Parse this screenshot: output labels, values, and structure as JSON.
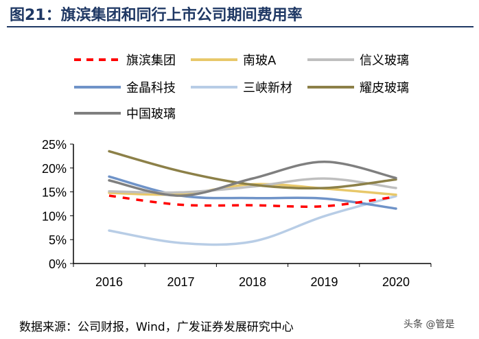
{
  "title": "图21：旗滨集团和同行上市公司期间费用率",
  "source": "数据来源：公司财报，Wind，广发证券发展研究中心",
  "watermark": "头条 @管是",
  "chart_data": {
    "type": "line",
    "title": "图21：旗滨集团和同行上市公司期间费用率",
    "categories": [
      "2016",
      "2017",
      "2018",
      "2019",
      "2020"
    ],
    "ylim": [
      0,
      25
    ],
    "yticks": [
      "0%",
      "5%",
      "10%",
      "15%",
      "20%",
      "25%"
    ],
    "grid": false,
    "legend": "top",
    "series": [
      {
        "name": "旗滨集团",
        "color": "#ff0000",
        "dashed": true,
        "values": [
          14.2,
          12.3,
          12.2,
          12.0,
          14.0
        ]
      },
      {
        "name": "南玻A",
        "color": "#e8c86a",
        "values": [
          14.8,
          14.5,
          16.6,
          15.7,
          14.4
        ]
      },
      {
        "name": "信义玻璃",
        "color": "#bfbfbf",
        "values": [
          15.1,
          14.9,
          16.1,
          17.8,
          15.8
        ]
      },
      {
        "name": "金晶科技",
        "color": "#6f93c8",
        "values": [
          18.2,
          14.2,
          13.7,
          13.6,
          11.5
        ]
      },
      {
        "name": "三峡新材",
        "color": "#b8cde6",
        "values": [
          6.9,
          4.3,
          4.6,
          9.9,
          14.1
        ]
      },
      {
        "name": "耀皮玻璃",
        "color": "#8c8048",
        "values": [
          23.5,
          19.3,
          16.5,
          15.8,
          17.6
        ]
      },
      {
        "name": "中国玻璃",
        "color": "#7f7f7f",
        "values": [
          17.4,
          14.2,
          17.8,
          21.3,
          17.9
        ]
      }
    ]
  }
}
